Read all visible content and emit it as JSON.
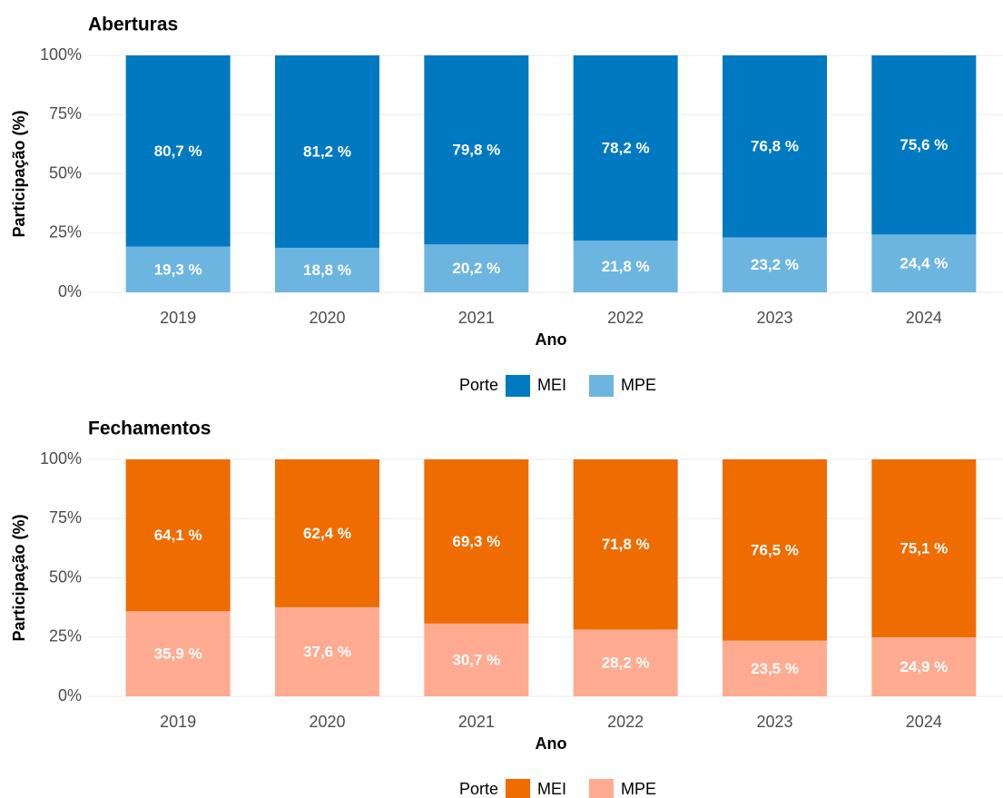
{
  "chart_data": [
    {
      "type": "bar",
      "stacked": true,
      "title": "Aberturas",
      "xlabel": "Ano",
      "ylabel": "Participação (%)",
      "categories": [
        "2019",
        "2020",
        "2021",
        "2022",
        "2023",
        "2024"
      ],
      "series": [
        {
          "name": "MEI",
          "color": "#0079c1",
          "values": [
            80.7,
            81.2,
            79.8,
            78.2,
            76.8,
            75.6
          ],
          "value_labels": [
            "80,7 %",
            "81,2 %",
            "79,8 %",
            "78,2 %",
            "76,8 %",
            "75,6 %"
          ]
        },
        {
          "name": "MPE",
          "color": "#6db5e1",
          "values": [
            19.3,
            18.8,
            20.2,
            21.8,
            23.2,
            24.4
          ],
          "value_labels": [
            "19,3 %",
            "18,8 %",
            "20,2 %",
            "21,8 %",
            "23,2 %",
            "24,4 %"
          ]
        }
      ],
      "ylim": [
        0,
        100
      ],
      "yticks": [
        {
          "value": 0,
          "label": "0%"
        },
        {
          "value": 25,
          "label": "25%"
        },
        {
          "value": 50,
          "label": "50%"
        },
        {
          "value": 75,
          "label": "75%"
        },
        {
          "value": 100,
          "label": "100%"
        }
      ],
      "grid": true,
      "legend_title": "Porte",
      "legend_position": "bottom"
    },
    {
      "type": "bar",
      "stacked": true,
      "title": "Fechamentos",
      "xlabel": "Ano",
      "ylabel": "Participação (%)",
      "categories": [
        "2019",
        "2020",
        "2021",
        "2022",
        "2023",
        "2024"
      ],
      "series": [
        {
          "name": "MEI",
          "color": "#ef6c00",
          "values": [
            64.1,
            62.4,
            69.3,
            71.8,
            76.5,
            75.1
          ],
          "value_labels": [
            "64,1 %",
            "62,4 %",
            "69,3 %",
            "71,8 %",
            "76,5 %",
            "75,1 %"
          ]
        },
        {
          "name": "MPE",
          "color": "#ffab91",
          "values": [
            35.9,
            37.6,
            30.7,
            28.2,
            23.5,
            24.9
          ],
          "value_labels": [
            "35,9 %",
            "37,6 %",
            "30,7 %",
            "28,2 %",
            "23,5 %",
            "24,9 %"
          ]
        }
      ],
      "ylim": [
        0,
        100
      ],
      "yticks": [
        {
          "value": 0,
          "label": "0%"
        },
        {
          "value": 25,
          "label": "25%"
        },
        {
          "value": 50,
          "label": "50%"
        },
        {
          "value": 75,
          "label": "75%"
        },
        {
          "value": 100,
          "label": "100%"
        }
      ],
      "grid": true,
      "legend_title": "Porte",
      "legend_position": "bottom"
    }
  ]
}
